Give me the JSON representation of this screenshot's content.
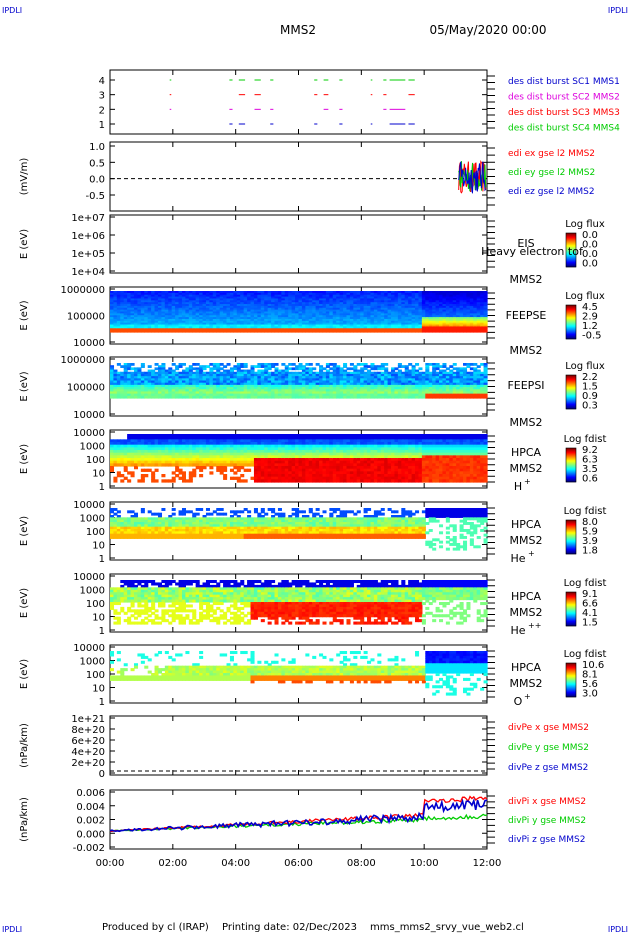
{
  "header": {
    "corner_tl": "IPDLI",
    "corner_tr": "IPDLI",
    "corner_bl": "IPDLI",
    "corner_br": "IPDLI",
    "mission": "MMS2",
    "datetime": "05/May/2020 00:00"
  },
  "footer": {
    "produced": "Produced by cl (IRAP)",
    "printing": "Printing date: 02/Dec/2023",
    "script": "mms_mms2_srvy_vue_web2.cl"
  },
  "colors": {
    "blue": "#0000cc",
    "red": "#ff0000",
    "magenta": "#dd00dd",
    "green": "#00cc00"
  },
  "chart_data": {
    "type": "multi-panel time series",
    "x_tick_labels": [
      "00:00",
      "02:00",
      "04:00",
      "06:00",
      "08:00",
      "10:00",
      "12:00"
    ],
    "xlim_hours": [
      0,
      12
    ],
    "panels": [
      {
        "id": "burst",
        "type": "event",
        "ylabel": "",
        "yticks": [
          "1",
          "2",
          "3",
          "4"
        ],
        "legend": [
          {
            "label": "des dist burst SC1 MMS1",
            "color": "#0000cc"
          },
          {
            "label": "des dist burst SC2 MMS2",
            "color": "#dd00dd"
          },
          {
            "label": "des dist burst SC3 MMS3",
            "color": "#ff0000"
          },
          {
            "label": "des dist burst SC4 MMS4",
            "color": "#00cc00"
          }
        ],
        "intervals_hours": [
          [
            1.9,
            1.95
          ],
          [
            3.8,
            3.9
          ],
          [
            4.1,
            4.3
          ],
          [
            4.6,
            4.8
          ],
          [
            5.1,
            5.2
          ],
          [
            6.5,
            6.6
          ],
          [
            6.8,
            6.95
          ],
          [
            7.3,
            7.4
          ],
          [
            8.3,
            8.35
          ],
          [
            8.7,
            8.8
          ],
          [
            8.9,
            9.4
          ],
          [
            9.5,
            9.7
          ]
        ]
      },
      {
        "id": "edi",
        "type": "line",
        "ylabel": "(mV/m)",
        "yticks": [
          "1.0",
          "0.5",
          "0.0",
          "-0.5"
        ],
        "ylim": [
          -0.85,
          1.05
        ],
        "legend": [
          {
            "label": "edi ex gse l2 MMS2",
            "color": "#ff0000"
          },
          {
            "label": "edi ey gse l2 MMS2",
            "color": "#00cc00"
          },
          {
            "label": "edi ez gse l2 MMS2",
            "color": "#0000cc"
          }
        ]
      },
      {
        "id": "eis",
        "type": "spectrogram",
        "ylabel": "E (eV)",
        "yticks": [
          "1e+07",
          "1e+06",
          "1e+05",
          "1e+04"
        ],
        "instrument": "EIS",
        "subtitle": "Heavy electron tof",
        "spacecraft": "MMS2",
        "cbar_title": "Log flux",
        "cbar_ticks": [
          "0.0",
          "0.0",
          "0.0",
          "0.0"
        ]
      },
      {
        "id": "feepse",
        "type": "spectrogram",
        "ylabel": "E (eV)",
        "yticks": [
          "1000000",
          "100000",
          "10000"
        ],
        "instrument": "FEEPSE",
        "spacecraft": "MMS2",
        "cbar_title": "Log flux",
        "cbar_ticks": [
          "4.5",
          "2.9",
          "1.2",
          "-0.5"
        ]
      },
      {
        "id": "feepsi",
        "type": "spectrogram",
        "ylabel": "E (eV)",
        "yticks": [
          "1000000",
          "100000",
          "10000"
        ],
        "instrument": "FEEPSI",
        "spacecraft": "MMS2",
        "cbar_title": "Log flux",
        "cbar_ticks": [
          "2.2",
          "1.5",
          "0.9",
          "0.3"
        ]
      },
      {
        "id": "hpca_h",
        "type": "spectrogram",
        "ylabel": "E (eV)",
        "yticks": [
          "10000",
          "1000",
          "100",
          "10",
          "1"
        ],
        "instrument": "HPCA",
        "spacecraft": "MMS2",
        "species": "H",
        "species_sup": "+",
        "cbar_title": "Log fdist",
        "cbar_ticks": [
          "9.2",
          "6.3",
          "3.5",
          "0.6"
        ]
      },
      {
        "id": "hpca_he",
        "type": "spectrogram",
        "ylabel": "E (eV)",
        "yticks": [
          "10000",
          "1000",
          "100",
          "10",
          "1"
        ],
        "instrument": "HPCA",
        "spacecraft": "MMS2",
        "species": "He",
        "species_sup": "+",
        "cbar_title": "Log fdist",
        "cbar_ticks": [
          "8.0",
          "5.9",
          "3.9",
          "1.8"
        ]
      },
      {
        "id": "hpca_he2",
        "type": "spectrogram",
        "ylabel": "E (eV)",
        "yticks": [
          "10000",
          "1000",
          "100",
          "10",
          "1"
        ],
        "instrument": "HPCA",
        "spacecraft": "MMS2",
        "species": "He",
        "species_sup": "++",
        "cbar_title": "Log fdist",
        "cbar_ticks": [
          "9.1",
          "6.6",
          "4.1",
          "1.5"
        ]
      },
      {
        "id": "hpca_o",
        "type": "spectrogram",
        "ylabel": "E (eV)",
        "yticks": [
          "10000",
          "1000",
          "100",
          "10",
          "1"
        ],
        "instrument": "HPCA",
        "spacecraft": "MMS2",
        "species": "O",
        "species_sup": "+",
        "cbar_title": "Log fdist",
        "cbar_ticks": [
          "10.6",
          "8.1",
          "5.6",
          "3.0"
        ]
      },
      {
        "id": "divpe",
        "type": "line",
        "ylabel": "(nPa/km)",
        "yticks": [
          "1e+21",
          "8e+20",
          "6e+20",
          "4e+20",
          "2e+20",
          "0"
        ],
        "ylim": [
          0,
          1e+21
        ],
        "legend": [
          {
            "label": "divPe x gse MMS2",
            "color": "#ff0000"
          },
          {
            "label": "divPe y gse MMS2",
            "color": "#00cc00"
          },
          {
            "label": "divPe z gse MMS2",
            "color": "#0000cc"
          }
        ]
      },
      {
        "id": "divpi",
        "type": "line",
        "ylabel": "(nPa/km)",
        "yticks": [
          "0.006",
          "0.004",
          "0.002",
          "0.000",
          "-0.002"
        ],
        "ylim": [
          -0.003,
          0.007
        ],
        "legend": [
          {
            "label": "divPi x gse MMS2",
            "color": "#ff0000"
          },
          {
            "label": "divPi y gse MMS2",
            "color": "#00cc00"
          },
          {
            "label": "divPi z gse MMS2",
            "color": "#0000cc"
          }
        ]
      }
    ]
  }
}
